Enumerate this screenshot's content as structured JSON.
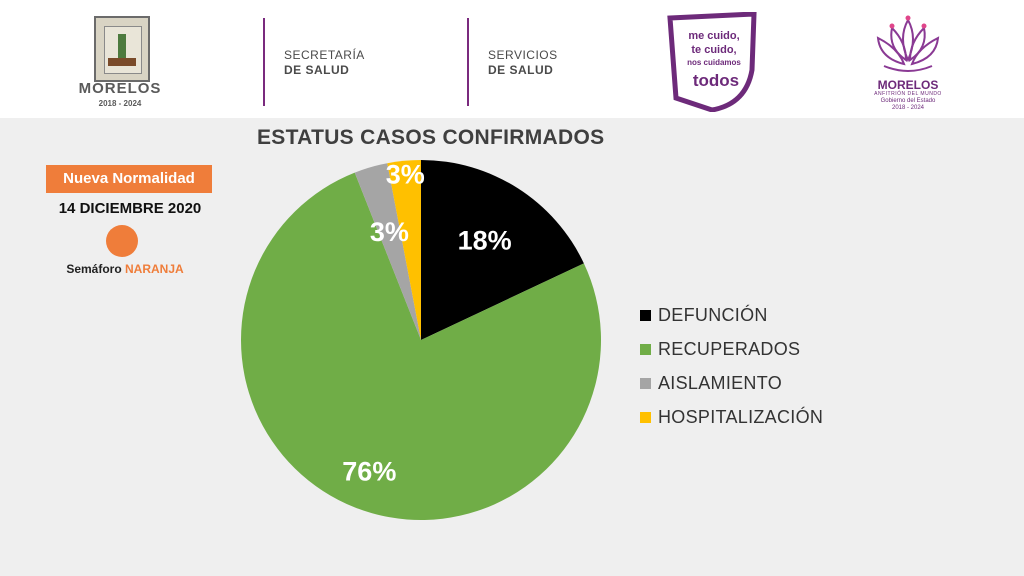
{
  "header": {
    "left_logo": {
      "title": "MORELOS",
      "years": "2018 - 2024"
    },
    "dept1": {
      "line1": "SECRETARÍA",
      "line2": "DE SALUD"
    },
    "dept2": {
      "line1": "SERVICIOS",
      "line2": "DE SALUD"
    },
    "campaign": {
      "line1": "me cuido,",
      "line2": "te cuido,",
      "line3": "nos cuidamos",
      "line4": "todos"
    },
    "right_logo": {
      "title": "MORELOS",
      "subtitle": "ANFITRIÓN DEL MUNDO",
      "line1": "Gobierno del Estado",
      "line2": "2018 - 2024"
    }
  },
  "sidebar": {
    "status_label": "Nueva Normalidad",
    "date": "14 DICIEMBRE 2020",
    "semaforo_label": "Semáforo",
    "semaforo_value": "NARANJA",
    "semaforo_color": "#ef7d3a"
  },
  "chart_data": {
    "type": "pie",
    "title": "ESTATUS CASOS CONFIRMADOS",
    "slices": [
      {
        "label": "DEFUNCIÓN",
        "value": 18,
        "display": "18%",
        "color": "#000000"
      },
      {
        "label": "RECUPERADOS",
        "value": 76,
        "display": "76%",
        "color": "#70ad47"
      },
      {
        "label": "AISLAMIENTO",
        "value": 3,
        "display": "3%",
        "color": "#a5a5a5"
      },
      {
        "label": "HOSPITALIZACIÓN",
        "value": 3,
        "display": "3%",
        "color": "#ffc000"
      }
    ],
    "legend_position": "right"
  }
}
